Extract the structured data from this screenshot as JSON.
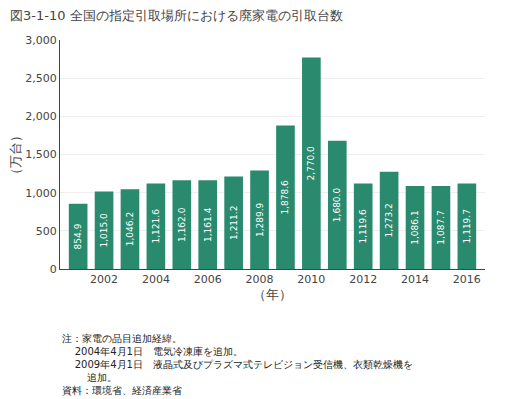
{
  "chart_data": {
    "type": "bar",
    "title": "図3-1-10 全国の指定引取場所における廃家電の引取台数",
    "x_label": "（年）",
    "y_label": "（万台）",
    "x": [
      2001,
      2002,
      2003,
      2004,
      2005,
      2006,
      2007,
      2008,
      2009,
      2010,
      2011,
      2012,
      2013,
      2014,
      2015,
      2016
    ],
    "values": [
      854.9,
      1015.0,
      1046.2,
      1121.6,
      1162.0,
      1161.4,
      1211.2,
      1289.9,
      1878.6,
      2770.0,
      1680.0,
      1119.6,
      1273.2,
      1086.1,
      1087.7,
      1119.7
    ],
    "value_labels": [
      "854.9",
      "1,015.0",
      "1,046.2",
      "1,121.6",
      "1,162.0",
      "1,161.4",
      "1,211.2",
      "1,289.9",
      "1,878.6",
      "2,770.0",
      "1,680.0",
      "1,119.6",
      "1,273.2",
      "1,086.1",
      "1,087.7",
      "1,119.7"
    ],
    "data_labels": true,
    "color": "#2a8a6e",
    "xlim": [
      2000.3,
      2016.7
    ],
    "xticks": [
      2002,
      2004,
      2006,
      2008,
      2010,
      2012,
      2014,
      2016
    ],
    "ylim": [
      0,
      3000
    ],
    "yticks": [
      0,
      500,
      {
        "value": 1000,
        "label": "1,000"
      },
      {
        "value": 1500,
        "label": "1,500"
      },
      {
        "value": 2000,
        "label": "2,000"
      },
      {
        "value": 2500,
        "label": "2,500"
      },
      {
        "value": 3000,
        "label": "3,000"
      }
    ],
    "grid": "y",
    "annotations": [
      "注：家電の品目追加経緯。",
      "    2004年4月1日　電気冷凍庫を追加。",
      "    2009年4月1日　液晶式及びプラズマ式テレビジョン受信機、衣類乾燥機を",
      "        追加。",
      "資料：環境省、経済産業省"
    ]
  }
}
